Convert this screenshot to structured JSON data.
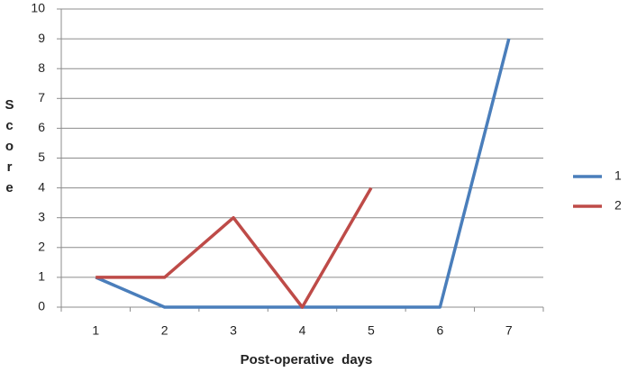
{
  "chart_data": {
    "type": "line",
    "x_label": "Post-operative  days",
    "y_label": "Score",
    "categories": [
      "1",
      "2",
      "3",
      "4",
      "5",
      "6",
      "7"
    ],
    "series": [
      {
        "name": "1",
        "color": "#4a7ebb",
        "values": [
          1,
          0,
          0,
          0,
          0,
          0,
          9
        ]
      },
      {
        "name": "2",
        "color": "#be4b48",
        "values": [
          1,
          1,
          3,
          0,
          4,
          null,
          null
        ]
      }
    ],
    "ylim": [
      0,
      10
    ],
    "yticks": [
      0,
      1,
      2,
      3,
      4,
      5,
      6,
      7,
      8,
      9,
      10
    ],
    "grid": true,
    "legend": "right"
  }
}
